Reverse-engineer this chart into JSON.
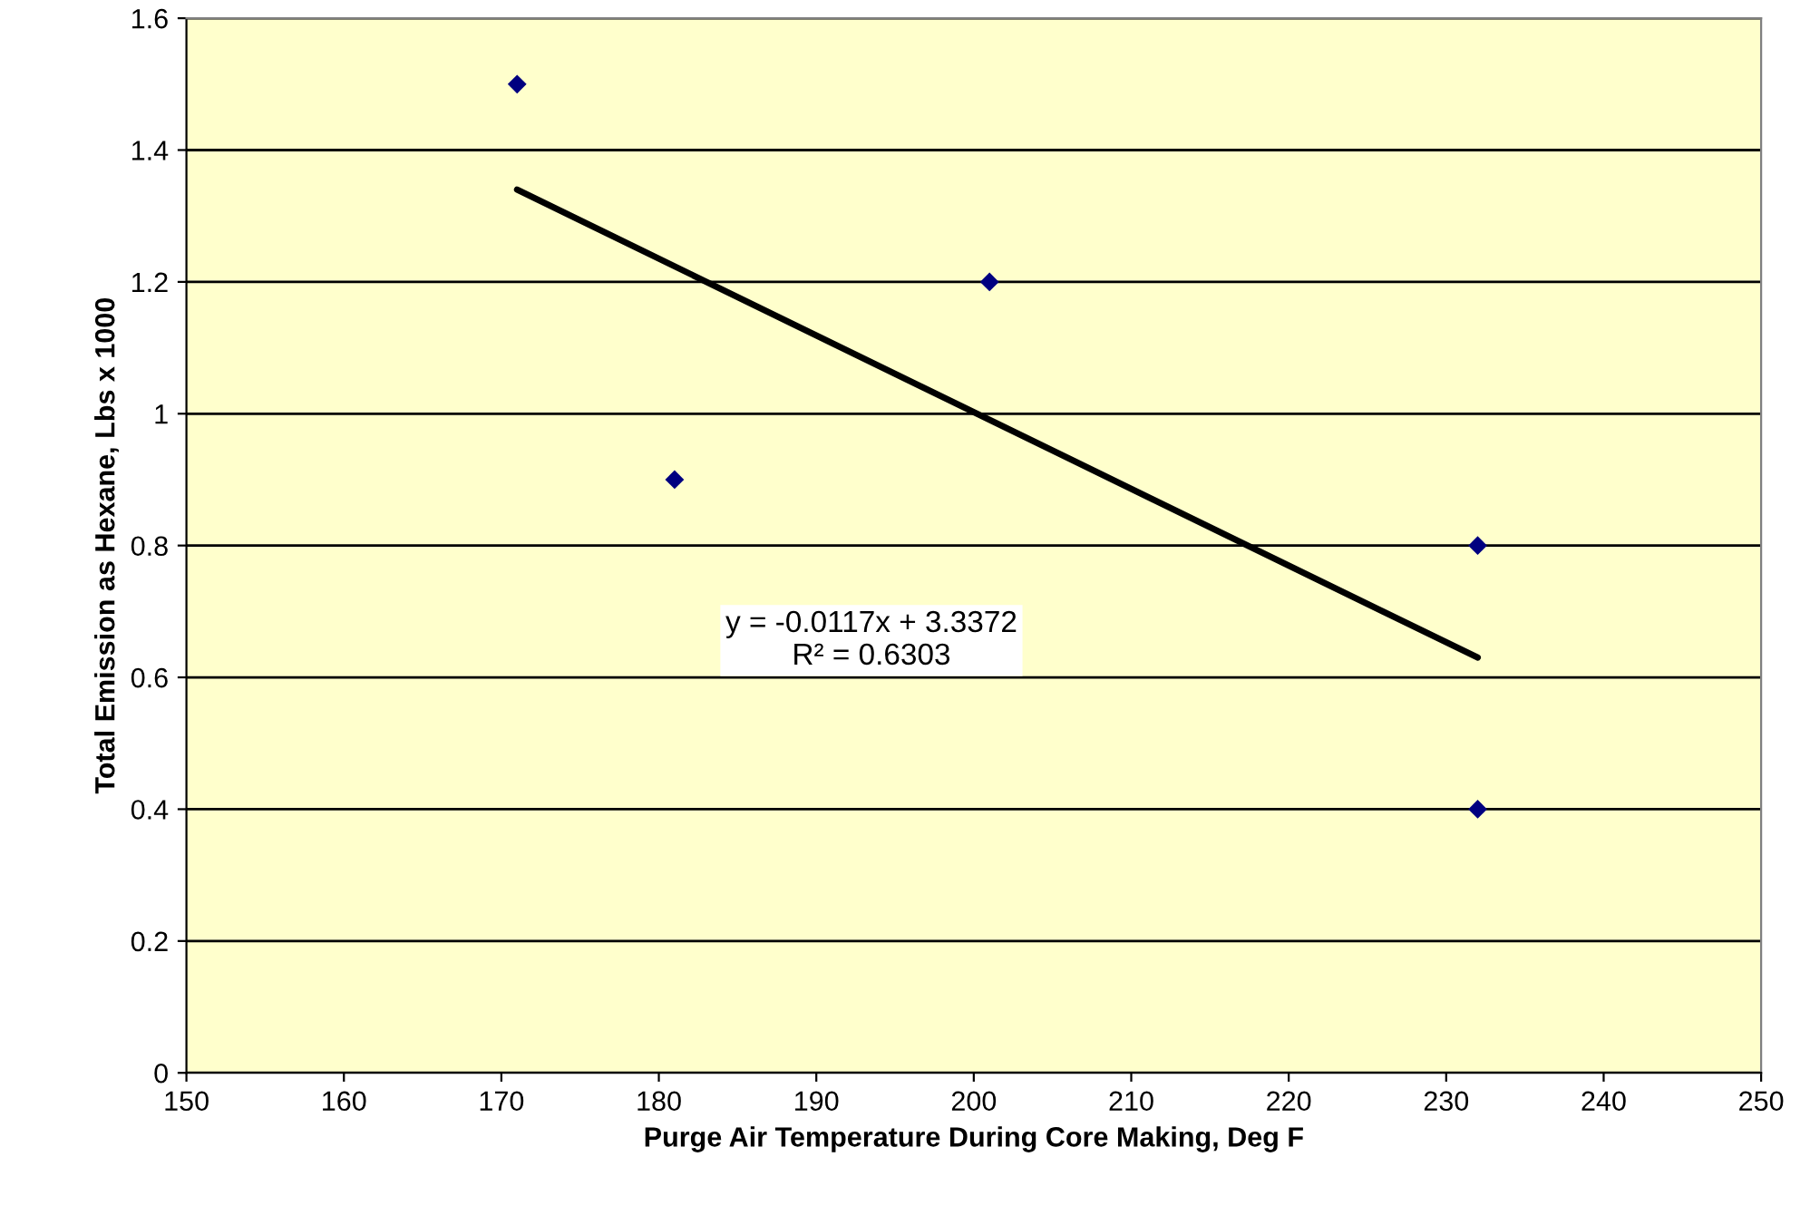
{
  "chart_data": {
    "type": "scatter",
    "xlabel": "Purge Air Temperature During Core Making, Deg F",
    "ylabel": "Total Emission as Hexane, Lbs x 1000",
    "xlim": [
      150,
      250
    ],
    "xticks": [
      150,
      160,
      170,
      180,
      190,
      200,
      210,
      220,
      230,
      240,
      250
    ],
    "ylim": [
      0,
      1.6
    ],
    "yticks": [
      0,
      0.2,
      0.4,
      0.6,
      0.8,
      1,
      1.2,
      1.4,
      1.6
    ],
    "grid": "y",
    "series": [
      {
        "color": "#000080",
        "marker": "diamond",
        "x": [
          171,
          181,
          201,
          232,
          232
        ],
        "values": [
          1.5,
          0.9,
          1.2,
          0.8,
          0.4
        ]
      },
      {
        "type": "line",
        "marker": "none",
        "color": "#000000",
        "x": [
          171,
          232
        ],
        "values": [
          1.34,
          0.63
        ]
      }
    ],
    "annotations": [
      "y = -0.0117x + 3.3372\nR² = 0.6303"
    ]
  }
}
